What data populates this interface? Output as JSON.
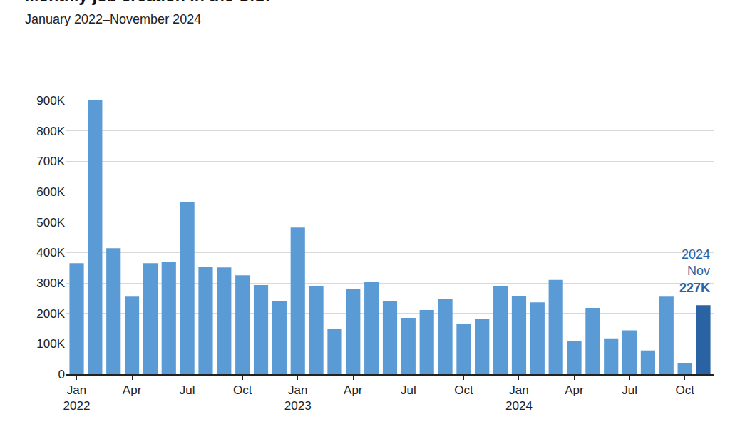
{
  "chart_data": {
    "type": "bar",
    "title": "Monthly job creation in the U.S.",
    "subtitle": "January 2022–November 2024",
    "categories": [
      "Jan\n2022",
      null,
      null,
      "Apr",
      null,
      null,
      "Jul",
      null,
      null,
      "Oct",
      null,
      null,
      "Jan\n2023",
      null,
      null,
      "Apr",
      null,
      null,
      "Jul",
      null,
      null,
      "Oct",
      null,
      null,
      "Jan\n2024",
      null,
      null,
      "Apr",
      null,
      null,
      "Jul",
      null,
      null,
      "Oct",
      null
    ],
    "values": [
      365000,
      900000,
      414000,
      255000,
      365000,
      370000,
      567000,
      354000,
      351000,
      325000,
      293000,
      241000,
      482000,
      288000,
      148000,
      279000,
      304000,
      241000,
      185000,
      211000,
      248000,
      166000,
      182000,
      290000,
      256000,
      236000,
      310000,
      108000,
      218000,
      118000,
      144000,
      78000,
      255000,
      36000,
      227000
    ],
    "colors": [
      "#5b9bd5",
      "#5b9bd5",
      "#5b9bd5",
      "#5b9bd5",
      "#5b9bd5",
      "#5b9bd5",
      "#5b9bd5",
      "#5b9bd5",
      "#5b9bd5",
      "#5b9bd5",
      "#5b9bd5",
      "#5b9bd5",
      "#5b9bd5",
      "#5b9bd5",
      "#5b9bd5",
      "#5b9bd5",
      "#5b9bd5",
      "#5b9bd5",
      "#5b9bd5",
      "#5b9bd5",
      "#5b9bd5",
      "#5b9bd5",
      "#5b9bd5",
      "#5b9bd5",
      "#5b9bd5",
      "#5b9bd5",
      "#5b9bd5",
      "#5b9bd5",
      "#5b9bd5",
      "#5b9bd5",
      "#5b9bd5",
      "#5b9bd5",
      "#5b9bd5",
      "#5b9bd5",
      "#2a63a3"
    ],
    "annotation": [
      "2024",
      "Nov",
      "227K"
    ],
    "annotation_color": "#2a63a3",
    "ylim": [
      0,
      900000
    ],
    "yticks": [
      0,
      {
        "value": 100000,
        "label": "100K"
      },
      {
        "value": 200000,
        "label": "200K"
      },
      {
        "value": 300000,
        "label": "300K"
      },
      {
        "value": 400000,
        "label": "400K"
      },
      {
        "value": 500000,
        "label": "500K"
      },
      {
        "value": 600000,
        "label": "600K"
      },
      {
        "value": 700000,
        "label": "700K"
      },
      {
        "value": 800000,
        "label": "800K"
      },
      {
        "value": 900000,
        "label": "900K"
      }
    ],
    "grid": true
  }
}
